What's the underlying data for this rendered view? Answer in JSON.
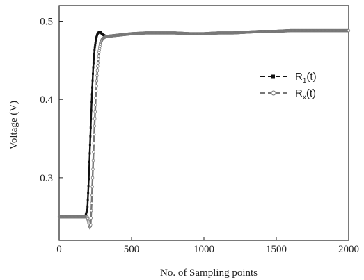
{
  "chart_data": {
    "type": "line",
    "title": "",
    "xlabel": "No. of Sampling points",
    "ylabel": "Voltage (V)",
    "xlim": [
      0,
      2000
    ],
    "ylim": [
      0.22,
      0.52
    ],
    "x_ticks": [
      0,
      500,
      1000,
      1500,
      2000
    ],
    "y_ticks": [
      0.3,
      0.4,
      0.5
    ],
    "x_tick_labels": [
      "0",
      "500",
      "1000",
      "1500",
      "2000"
    ],
    "y_tick_labels": [
      "0.3",
      "0.4",
      "0.5"
    ],
    "grid": false,
    "legend_position": "right",
    "series": [
      {
        "name_base": "R",
        "name_sub": "1",
        "name_suffix": "(t)",
        "marker": "filled-square",
        "color": "#111111",
        "x": [
          0,
          100,
          180,
          195,
          205,
          215,
          225,
          235,
          245,
          255,
          265,
          275,
          285,
          300,
          320,
          350,
          400,
          500,
          600,
          700,
          800,
          900,
          1000,
          1100,
          1200,
          1300,
          1400,
          1500,
          1600,
          1700,
          1800,
          1900,
          2000
        ],
        "y": [
          0.25,
          0.25,
          0.25,
          0.26,
          0.3,
          0.35,
          0.4,
          0.44,
          0.465,
          0.478,
          0.484,
          0.486,
          0.486,
          0.483,
          0.481,
          0.481,
          0.482,
          0.484,
          0.485,
          0.485,
          0.485,
          0.484,
          0.484,
          0.485,
          0.485,
          0.486,
          0.487,
          0.487,
          0.488,
          0.488,
          0.488,
          0.488,
          0.488
        ]
      },
      {
        "name_base": "R",
        "name_sub": "x",
        "name_suffix": "(t)",
        "marker": "open-circle",
        "color": "#777777",
        "x": [
          0,
          100,
          180,
          195,
          205,
          212,
          218,
          225,
          235,
          245,
          255,
          265,
          275,
          285,
          300,
          320,
          350,
          400,
          500,
          600,
          700,
          800,
          900,
          1000,
          1100,
          1200,
          1300,
          1400,
          1500,
          1600,
          1700,
          1800,
          1900,
          2000
        ],
        "y": [
          0.25,
          0.25,
          0.25,
          0.25,
          0.242,
          0.237,
          0.24,
          0.27,
          0.32,
          0.37,
          0.41,
          0.44,
          0.46,
          0.472,
          0.478,
          0.48,
          0.481,
          0.482,
          0.484,
          0.485,
          0.485,
          0.485,
          0.484,
          0.484,
          0.485,
          0.485,
          0.486,
          0.487,
          0.487,
          0.488,
          0.488,
          0.488,
          0.488,
          0.488
        ]
      }
    ]
  }
}
